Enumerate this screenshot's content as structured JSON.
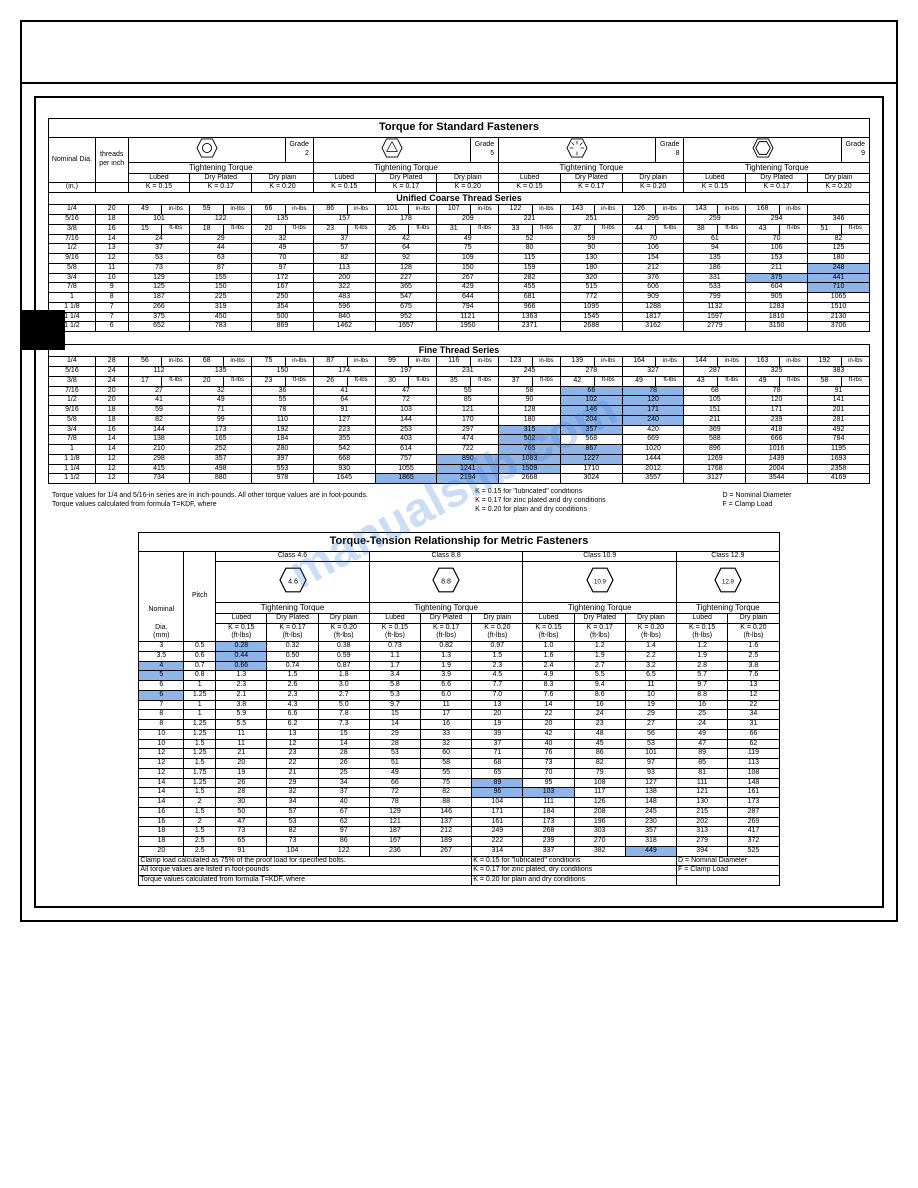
{
  "watermark": "manualslib.com",
  "table1": {
    "title": "Torque for Standard Fasteners",
    "head": {
      "nominal": "Nominal Dia.",
      "threads": "threads per inch",
      "inches": "(in.)",
      "grades": [
        "Grade 2",
        "Grade 5",
        "Grade 8",
        "Grade 9"
      ],
      "tight": "Tightening Torque",
      "cols": [
        "Lubed",
        "Dry Plated",
        "Dry plain"
      ],
      "k": [
        "K = 0.15",
        "K = 0.17",
        "K = 0.20"
      ]
    },
    "section_uc": "Unified Coarse Thread Series",
    "section_ft": "Fine Thread Series",
    "uc": [
      [
        "1/4",
        "20",
        "49",
        "in-lbs",
        "59",
        "in-lbs",
        "66",
        "in-lbs",
        "86",
        "in-lbs",
        "101",
        "in-lbs",
        "107",
        "in-lbs",
        "122",
        "in-lbs",
        "143",
        "in-lbs",
        "126",
        "in-lbs",
        "143",
        "in-lbs",
        "168",
        "in-lbs"
      ],
      [
        "5/16",
        "18",
        "101",
        "",
        "122",
        "",
        "135",
        "",
        "157",
        "",
        "178",
        "",
        "209",
        "",
        "221",
        "",
        "251",
        "",
        "295",
        "",
        "259",
        "",
        "294",
        "",
        "346",
        ""
      ],
      [
        "3/8",
        "16",
        "15",
        "ft-lbs",
        "18",
        "ft-lbs",
        "20",
        "ft-lbs",
        "23",
        "ft-lbs",
        "26",
        "ft-lbs",
        "31",
        "ft-lbs",
        "33",
        "ft-lbs",
        "37",
        "ft-lbs",
        "44",
        "ft-lbs",
        "38",
        "ft-lbs",
        "43",
        "ft-lbs",
        "51",
        "ft-lbs"
      ],
      [
        "7/16",
        "14",
        "24",
        "",
        "29",
        "",
        "32",
        "",
        "37",
        "",
        "42",
        "",
        "49",
        "",
        "52",
        "",
        "59",
        "",
        "70",
        "",
        "61",
        "",
        "70",
        "",
        "82",
        ""
      ],
      [
        "1/2",
        "13",
        "37",
        "",
        "44",
        "",
        "49",
        "",
        "57",
        "",
        "64",
        "",
        "75",
        "",
        "80",
        "",
        "90",
        "",
        "106",
        "",
        "94",
        "",
        "106",
        "",
        "125",
        ""
      ],
      [
        "9/16",
        "12",
        "53",
        "",
        "63",
        "",
        "70",
        "",
        "82",
        "",
        "92",
        "",
        "109",
        "",
        "115",
        "",
        "130",
        "",
        "154",
        "",
        "135",
        "",
        "153",
        "",
        "180",
        ""
      ],
      [
        "5/8",
        "11",
        "73",
        "",
        "87",
        "",
        "97",
        "",
        "113",
        "",
        "128",
        "",
        "150",
        "",
        "159",
        "",
        "180",
        "",
        "212",
        "",
        "186",
        "",
        "211",
        "",
        "248",
        ""
      ],
      [
        "3/4",
        "10",
        "129",
        "",
        "155",
        "",
        "172",
        "",
        "200",
        "",
        "227",
        "",
        "267",
        "",
        "282",
        "",
        "320",
        "",
        "376",
        "",
        "331",
        "",
        "375",
        "",
        "441",
        ""
      ],
      [
        "7/8",
        "9",
        "125",
        "",
        "150",
        "",
        "167",
        "",
        "322",
        "",
        "365",
        "",
        "429",
        "",
        "455",
        "",
        "515",
        "",
        "606",
        "",
        "533",
        "",
        "604",
        "",
        "710",
        ""
      ],
      [
        "1",
        "8",
        "187",
        "",
        "225",
        "",
        "250",
        "",
        "483",
        "",
        "547",
        "",
        "644",
        "",
        "681",
        "",
        "772",
        "",
        "909",
        "",
        "799",
        "",
        "905",
        "",
        "1065",
        ""
      ],
      [
        "1 1/8",
        "7",
        "266",
        "",
        "319",
        "",
        "354",
        "",
        "596",
        "",
        "675",
        "",
        "794",
        "",
        "966",
        "",
        "1095",
        "",
        "1288",
        "",
        "1132",
        "",
        "1283",
        "",
        "1510",
        ""
      ],
      [
        "1 1/4",
        "7",
        "375",
        "",
        "450",
        "",
        "500",
        "",
        "840",
        "",
        "952",
        "",
        "1121",
        "",
        "1363",
        "",
        "1545",
        "",
        "1817",
        "",
        "1597",
        "",
        "1810",
        "",
        "2130",
        ""
      ],
      [
        "1 1/2",
        "6",
        "652",
        "",
        "783",
        "",
        "869",
        "",
        "1462",
        "",
        "1657",
        "",
        "1950",
        "",
        "2371",
        "",
        "2688",
        "",
        "3162",
        "",
        "2779",
        "",
        "3150",
        "",
        "3706",
        ""
      ]
    ],
    "ft": [
      [
        "1/4",
        "28",
        "56",
        "in-lbs",
        "68",
        "in-lbs",
        "75",
        "in-lbs",
        "87",
        "in-lbs",
        "99",
        "in-lbs",
        "116",
        "in-lbs",
        "123",
        "in-lbs",
        "139",
        "in-lbs",
        "164",
        "in-lbs",
        "144",
        "in-lbs",
        "163",
        "in-lbs",
        "192",
        "in-lbs"
      ],
      [
        "5/16",
        "24",
        "112",
        "",
        "135",
        "",
        "150",
        "",
        "174",
        "",
        "197",
        "",
        "231",
        "",
        "245",
        "",
        "278",
        "",
        "327",
        "",
        "287",
        "",
        "325",
        "",
        "383",
        ""
      ],
      [
        "3/8",
        "24",
        "17",
        "ft-lbs",
        "20",
        "ft-lbs",
        "23",
        "ft-lbs",
        "26",
        "ft-lbs",
        "30",
        "ft-lbs",
        "35",
        "ft-lbs",
        "37",
        "ft-lbs",
        "42",
        "ft-lbs",
        "49",
        "ft-lbs",
        "43",
        "ft-lbs",
        "49",
        "ft-lbs",
        "58",
        "ft-lbs"
      ],
      [
        "7/16",
        "20",
        "27",
        "",
        "32",
        "",
        "36",
        "",
        "41",
        "",
        "47",
        "",
        "55",
        "",
        "58",
        "",
        "66",
        "",
        "78",
        "",
        "68",
        "",
        "78",
        "",
        "91",
        ""
      ],
      [
        "1/2",
        "20",
        "41",
        "",
        "49",
        "",
        "55",
        "",
        "64",
        "",
        "72",
        "",
        "85",
        "",
        "90",
        "",
        "102",
        "",
        "120",
        "",
        "105",
        "",
        "120",
        "",
        "141",
        ""
      ],
      [
        "9/16",
        "18",
        "59",
        "",
        "71",
        "",
        "78",
        "",
        "91",
        "",
        "103",
        "",
        "121",
        "",
        "128",
        "",
        "146",
        "",
        "171",
        "",
        "151",
        "",
        "171",
        "",
        "201",
        ""
      ],
      [
        "5/8",
        "18",
        "82",
        "",
        "99",
        "",
        "110",
        "",
        "127",
        "",
        "144",
        "",
        "170",
        "",
        "180",
        "",
        "204",
        "",
        "240",
        "",
        "211",
        "",
        "239",
        "",
        "281",
        ""
      ],
      [
        "3/4",
        "16",
        "144",
        "",
        "173",
        "",
        "192",
        "",
        "223",
        "",
        "253",
        "",
        "297",
        "",
        "315",
        "",
        "357",
        "",
        "420",
        "",
        "369",
        "",
        "418",
        "",
        "492",
        ""
      ],
      [
        "7/8",
        "14",
        "138",
        "",
        "165",
        "",
        "184",
        "",
        "355",
        "",
        "403",
        "",
        "474",
        "",
        "502",
        "",
        "568",
        "",
        "669",
        "",
        "588",
        "",
        "666",
        "",
        "784",
        ""
      ],
      [
        "1",
        "14",
        "210",
        "",
        "252",
        "",
        "280",
        "",
        "542",
        "",
        "614",
        "",
        "722",
        "",
        "765",
        "",
        "867",
        "",
        "1020",
        "",
        "896",
        "",
        "1016",
        "",
        "1195",
        ""
      ],
      [
        "1 1/8",
        "12",
        "298",
        "",
        "357",
        "",
        "397",
        "",
        "668",
        "",
        "757",
        "",
        "890",
        "",
        "1083",
        "",
        "1227",
        "",
        "1444",
        "",
        "1269",
        "",
        "1439",
        "",
        "1693",
        ""
      ],
      [
        "1 1/4",
        "12",
        "415",
        "",
        "498",
        "",
        "553",
        "",
        "930",
        "",
        "1055",
        "",
        "1241",
        "",
        "1509",
        "",
        "1710",
        "",
        "2012",
        "",
        "1768",
        "",
        "2004",
        "",
        "2358",
        ""
      ],
      [
        "1 1/2",
        "12",
        "734",
        "",
        "880",
        "",
        "978",
        "",
        "1645",
        "",
        "1865",
        "",
        "2194",
        "",
        "2668",
        "",
        "3024",
        "",
        "3557",
        "",
        "3127",
        "",
        "3544",
        "",
        "4169",
        ""
      ]
    ],
    "note1": "Torque values for 1/4 and 5/16-in series are in inch-pounds.  All other torque values are in foot-pounds.",
    "note2": "Torque values calculated from formula T=KDF, where",
    "kcol": [
      "K = 0.15 for \"lubricated\" conditions",
      "K = 0.17 for zinc plated and dry conditions",
      "K = 0.20 for plain and dry conditions"
    ],
    "dcol": [
      "D = Nominal Diameter",
      "F = Clamp Load"
    ]
  },
  "table2": {
    "title": "Torque-Tension Relationship for Metric Fasteners",
    "classes": [
      "Class 4.6",
      "Class 8.8",
      "Class 10.9",
      "Class 12.9"
    ],
    "class_txt": [
      "4.6",
      "8.8",
      "10.9",
      "12.9"
    ],
    "nominal": "Nominal",
    "pitch": "Pitch",
    "dia": "Dia.",
    "mm": "(mm)",
    "tight": "Tightening Torque",
    "cols": [
      "Lubed",
      "Dry Plated",
      "Dry plain"
    ],
    "cols2": [
      "Lubed",
      "Dry plain"
    ],
    "k": [
      "K = 0.15",
      "K = 0.17",
      "K = 0.20"
    ],
    "unit": "(ft-lbs)",
    "rows": [
      [
        "3",
        "0.5",
        "0.28",
        "0.32",
        "0.38",
        "0.73",
        "0.82",
        "0.97",
        "1.0",
        "1.2",
        "1.4",
        "1.2",
        "1.6"
      ],
      [
        "3.5",
        "0.6",
        "0.44",
        "0.50",
        "0.59",
        "1.1",
        "1.3",
        "1.5",
        "1.6",
        "1.9",
        "2.2",
        "1.9",
        "2.5"
      ],
      [
        "4",
        "0.7",
        "0.66",
        "0.74",
        "0.87",
        "1.7",
        "1.9",
        "2.3",
        "2.4",
        "2.7",
        "3.2",
        "2.8",
        "3.8"
      ],
      [
        "5",
        "0.8",
        "1.3",
        "1.5",
        "1.8",
        "3.4",
        "3.9",
        "4.5",
        "4.9",
        "5.5",
        "6.5",
        "5.7",
        "7.6"
      ],
      [
        "6",
        "1",
        "2.3",
        "2.6",
        "3.0",
        "5.8",
        "6.6",
        "7.7",
        "8.3",
        "9.4",
        "11",
        "9.7",
        "13"
      ],
      [
        "6",
        "1.25",
        "2.1",
        "2.3",
        "2.7",
        "5.3",
        "6.0",
        "7.0",
        "7.6",
        "8.6",
        "10",
        "8.8",
        "12"
      ],
      [
        "7",
        "1",
        "3.8",
        "4.3",
        "5.0",
        "9.7",
        "11",
        "13",
        "14",
        "16",
        "19",
        "16",
        "22"
      ],
      [
        "8",
        "1",
        "5.9",
        "6.6",
        "7.8",
        "15",
        "17",
        "20",
        "22",
        "24",
        "29",
        "25",
        "34"
      ],
      [
        "8",
        "1.25",
        "5.5",
        "6.2",
        "7.3",
        "14",
        "16",
        "19",
        "20",
        "23",
        "27",
        "24",
        "31"
      ],
      [
        "10",
        "1.25",
        "11",
        "13",
        "15",
        "29",
        "33",
        "39",
        "42",
        "48",
        "56",
        "49",
        "66"
      ],
      [
        "10",
        "1.5",
        "11",
        "12",
        "14",
        "28",
        "32",
        "37",
        "40",
        "45",
        "53",
        "47",
        "62"
      ],
      [
        "12",
        "1.25",
        "21",
        "23",
        "28",
        "53",
        "60",
        "71",
        "76",
        "86",
        "101",
        "89",
        "119"
      ],
      [
        "12",
        "1.5",
        "20",
        "22",
        "26",
        "51",
        "58",
        "68",
        "73",
        "82",
        "97",
        "85",
        "113"
      ],
      [
        "12",
        "1.75",
        "19",
        "21",
        "25",
        "49",
        "55",
        "65",
        "70",
        "79",
        "93",
        "81",
        "108"
      ],
      [
        "14",
        "1.25",
        "26",
        "29",
        "34",
        "66",
        "75",
        "89",
        "95",
        "108",
        "127",
        "111",
        "148"
      ],
      [
        "14",
        "1.5",
        "28",
        "32",
        "37",
        "72",
        "82",
        "96",
        "103",
        "117",
        "138",
        "121",
        "161"
      ],
      [
        "14",
        "2",
        "30",
        "34",
        "40",
        "78",
        "88",
        "104",
        "111",
        "126",
        "148",
        "130",
        "173"
      ],
      [
        "16",
        "1.5",
        "50",
        "57",
        "67",
        "129",
        "146",
        "171",
        "184",
        "208",
        "245",
        "215",
        "287"
      ],
      [
        "16",
        "2",
        "47",
        "53",
        "62",
        "121",
        "137",
        "161",
        "173",
        "196",
        "230",
        "202",
        "269"
      ],
      [
        "18",
        "1.5",
        "73",
        "82",
        "97",
        "187",
        "212",
        "249",
        "268",
        "303",
        "357",
        "313",
        "417"
      ],
      [
        "18",
        "2.5",
        "65",
        "73",
        "86",
        "167",
        "189",
        "222",
        "239",
        "270",
        "318",
        "279",
        "372"
      ],
      [
        "20",
        "2.5",
        "91",
        "104",
        "122",
        "236",
        "267",
        "314",
        "337",
        "382",
        "449",
        "394",
        "525"
      ]
    ],
    "fn1": "Clamp load calculated as 75% of the proof load for specified bolts.",
    "fn1k": "K = 0.15 for \"lubricated\" conditions",
    "fn1d": "D = Nominal Diameter",
    "fn2": "All torque values are listed in foot-pounds",
    "fn2k": "K = 0.17 for zinc plated, dry conditions",
    "fn2d": "F = Clamp Load",
    "fn3": "Torque values calculated from formula T=KDF, where",
    "fn3k": "K = 0.20 for plain and dry conditions"
  }
}
